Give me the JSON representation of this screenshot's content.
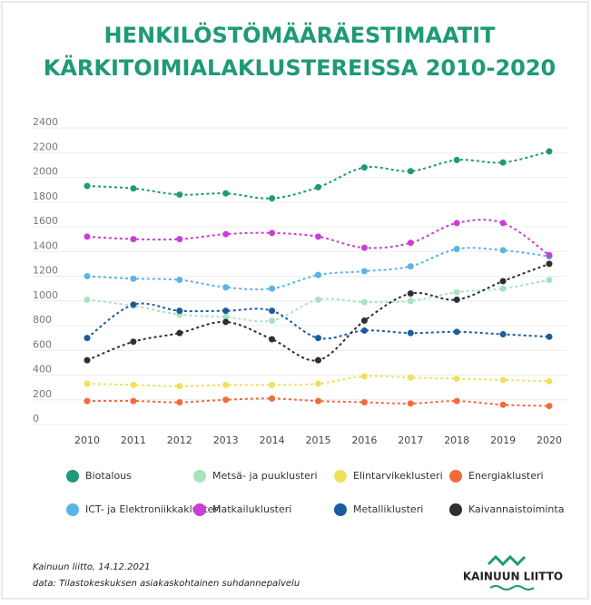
{
  "chart_data": {
    "type": "line",
    "title": [
      "HENKILÖSTÖMÄÄRÄESTIMAATIT",
      "KÄRKITOIMIALAKLUSTEREISSA 2010-2020"
    ],
    "categories": [
      "2010",
      "2011",
      "2012",
      "2013",
      "2014",
      "2015",
      "2016",
      "2017",
      "2018",
      "2019",
      "2020"
    ],
    "series": [
      {
        "name": "Biotalous",
        "color": "#1e9a76",
        "values": [
          1930,
          1910,
          1860,
          1870,
          1830,
          1920,
          2080,
          2050,
          2140,
          2120,
          2210
        ]
      },
      {
        "name": "Metsä- ja puuklusteri",
        "color": "#a8e3bd",
        "values": [
          1010,
          960,
          890,
          870,
          840,
          1010,
          990,
          1000,
          1070,
          1100,
          1170
        ]
      },
      {
        "name": "Elintarvikeklusteri",
        "color": "#f0e05a",
        "values": [
          330,
          320,
          310,
          320,
          320,
          330,
          390,
          380,
          370,
          360,
          350
        ]
      },
      {
        "name": "Energiaklusteri",
        "color": "#f26b3a",
        "values": [
          190,
          190,
          180,
          200,
          210,
          190,
          180,
          170,
          190,
          160,
          150
        ]
      },
      {
        "name": "ICT- ja Elektroniikkaklusteri",
        "color": "#5ab4e5",
        "values": [
          1200,
          1180,
          1170,
          1110,
          1100,
          1210,
          1240,
          1280,
          1420,
          1410,
          1360
        ]
      },
      {
        "name": "Matkailuklusteri",
        "color": "#c93fd6",
        "values": [
          1520,
          1500,
          1500,
          1540,
          1550,
          1520,
          1430,
          1470,
          1630,
          1630,
          1370
        ]
      },
      {
        "name": "Metalliklusteri",
        "color": "#1c5c9c",
        "values": [
          700,
          970,
          920,
          920,
          920,
          700,
          760,
          740,
          750,
          730,
          710
        ]
      },
      {
        "name": "Kaivannaistoiminta",
        "color": "#2c2f33",
        "values": [
          520,
          670,
          740,
          830,
          690,
          520,
          840,
          1060,
          1010,
          1160,
          1300
        ]
      }
    ],
    "ylim": [
      0,
      2400
    ],
    "yticks": [
      0,
      200,
      400,
      600,
      800,
      1000,
      1200,
      1400,
      1600,
      1800,
      2000,
      2200,
      2400
    ],
    "grid": true,
    "source": [
      "Kainuun liitto, 14.12.2021",
      "data: Tilastokeskuksen asiakaskohtainen suhdannepalvelu"
    ],
    "logo_text": "KAINUUN LIITTO"
  }
}
